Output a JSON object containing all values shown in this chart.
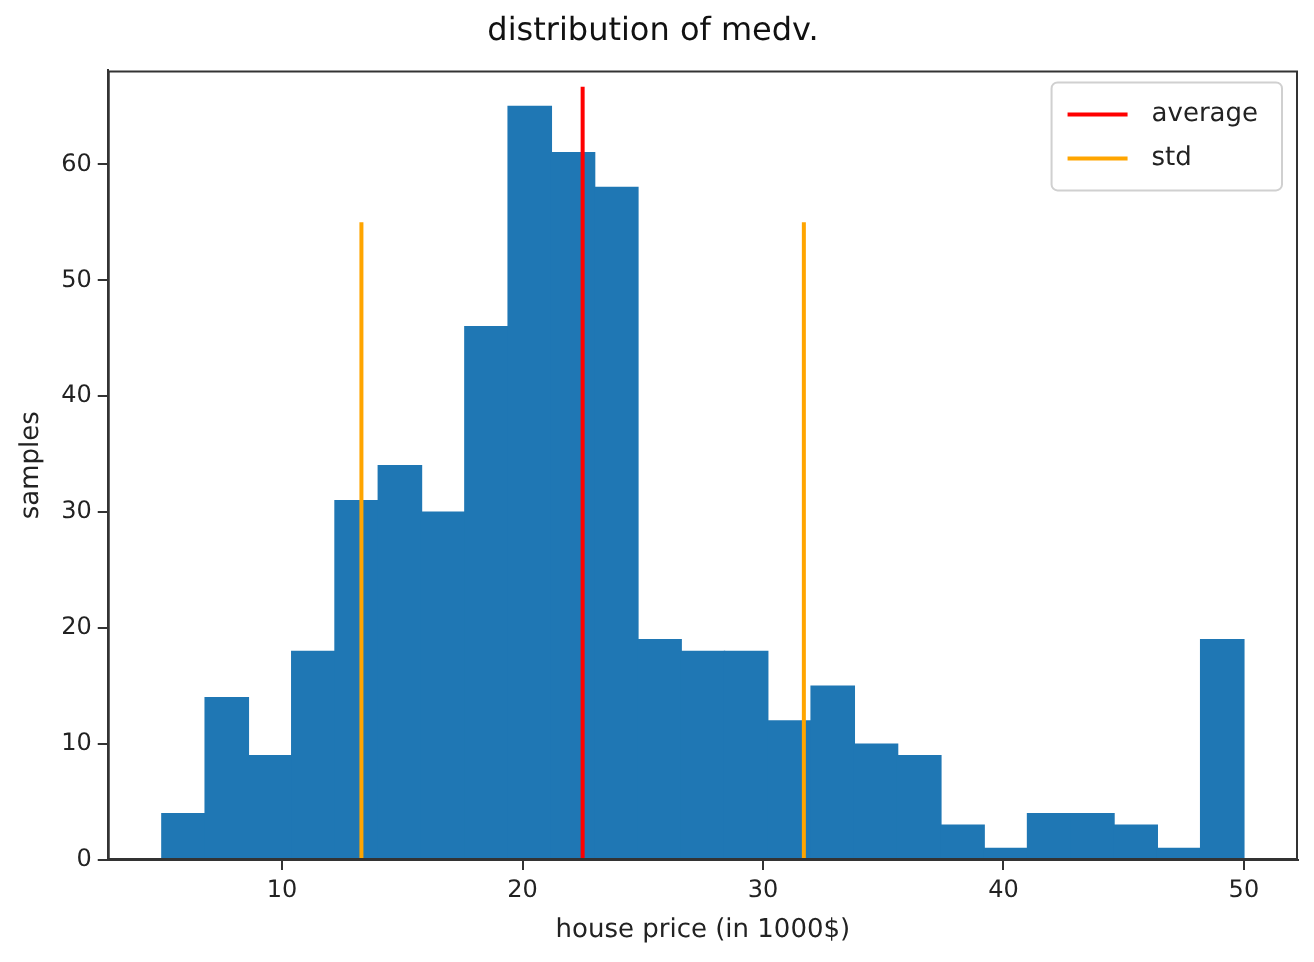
{
  "chart_data": {
    "type": "histogram",
    "title": "distribution of medv.",
    "xlabel": "house price (in 1000$)",
    "ylabel": "samples",
    "bins": [
      5,
      6.8,
      8.6,
      10.4,
      12.2,
      14,
      15.8,
      17.6,
      19.4,
      21.2,
      23,
      24.8,
      26.6,
      28.4,
      30.2,
      32,
      33.8,
      35.6,
      37.4,
      39.2,
      41,
      42.8,
      44.6,
      46.4,
      48.2,
      50
    ],
    "values": [
      4,
      14,
      9,
      18,
      31,
      34,
      30,
      46,
      65,
      61,
      58,
      19,
      18,
      18,
      12,
      15,
      10,
      9,
      3,
      1,
      4,
      4,
      3,
      1,
      19
    ],
    "color": "#1f77b4",
    "series": [
      {
        "type": "line",
        "name": "average",
        "color": "#ff0000",
        "x": [
          22.5,
          22.5
        ],
        "values": [
          0,
          66.7
        ]
      },
      {
        "type": "line",
        "name": "std",
        "color": "#ffa500",
        "x": [
          13.3,
          13.3
        ],
        "values": [
          0,
          55
        ]
      },
      {
        "type": "line",
        "color": "#ffa500",
        "x": [
          31.7,
          31.7
        ],
        "values": [
          0,
          55
        ]
      }
    ],
    "xlim": [
      2.75,
      52.25
    ],
    "xticks": [
      10,
      20,
      30,
      40,
      50
    ],
    "ylim": [
      0,
      68.1
    ],
    "yticks": [
      0,
      10,
      20,
      30,
      40,
      50,
      60
    ],
    "grid": false,
    "legend": "top right"
  }
}
